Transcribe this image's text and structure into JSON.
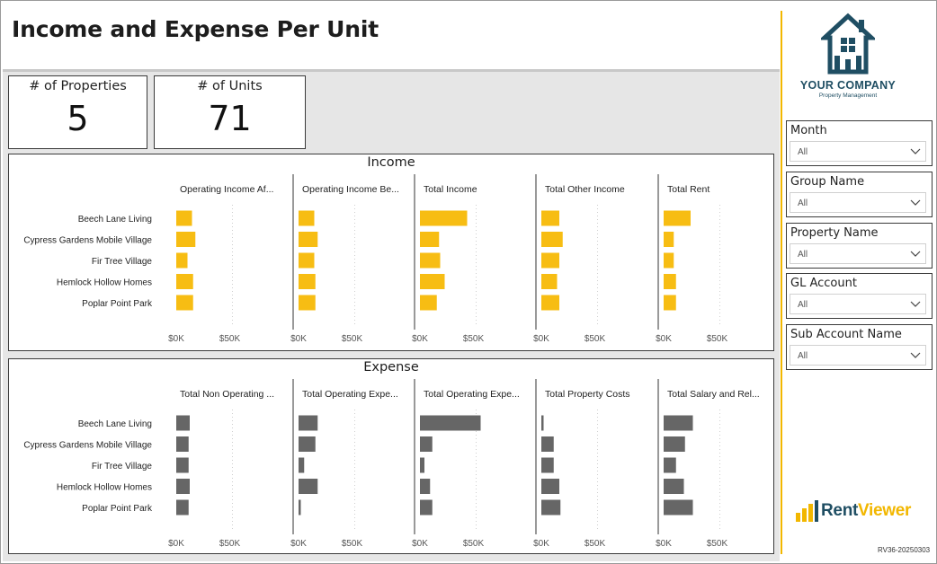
{
  "page": {
    "title": "Income and Expense Per Unit",
    "version": "RV36-20250303"
  },
  "kpis": [
    {
      "label": "# of Properties",
      "value": "5"
    },
    {
      "label": "# of Units",
      "value": "71"
    }
  ],
  "colors": {
    "accent": "#f2b700",
    "income_bar": "#f7bd13",
    "expense_bar": "#666666",
    "brand": "#1f4e63"
  },
  "properties": [
    "Beech Lane Living",
    "Cypress Gardens Mobile Village",
    "Fir Tree Village",
    "Hemlock Hollow Homes",
    "Poplar Point Park"
  ],
  "axis": {
    "ticks": [
      "$0K",
      "$50K"
    ],
    "max": 80
  },
  "income": {
    "title": "Income",
    "charts": [
      {
        "title": "Operating Income Af...",
        "values": [
          14,
          17,
          10,
          15,
          15
        ]
      },
      {
        "title": "Operating Income Be...",
        "values": [
          14,
          17,
          14,
          15,
          15
        ]
      },
      {
        "title": "Total Income",
        "values": [
          42,
          17,
          18,
          22,
          15
        ]
      },
      {
        "title": "Total Other Income",
        "values": [
          16,
          19,
          16,
          14,
          16
        ]
      },
      {
        "title": "Total Rent",
        "values": [
          24,
          9,
          9,
          11,
          11
        ]
      }
    ]
  },
  "expense": {
    "title": "Expense",
    "charts": [
      {
        "title": "Total Non Operating ...",
        "values": [
          12,
          11,
          11,
          12,
          11
        ]
      },
      {
        "title": "Total Operating Expe...",
        "values": [
          17,
          15,
          5,
          17,
          2
        ]
      },
      {
        "title": "Total Operating Expe...",
        "values": [
          54,
          11,
          4,
          9,
          11
        ]
      },
      {
        "title": "Total Property Costs",
        "values": [
          2,
          11,
          11,
          16,
          17
        ]
      },
      {
        "title": "Total Salary and Rel...",
        "values": [
          26,
          19,
          11,
          18,
          26
        ]
      }
    ]
  },
  "logo": {
    "company": "YOUR COMPANY",
    "tagline": "Property Management",
    "icon": "house-icon"
  },
  "brand_logo": {
    "part1": "Rent",
    "part2": "Viewer",
    "icon": "bar-chart-icon"
  },
  "slicers": [
    {
      "title": "Month",
      "value": "All"
    },
    {
      "title": "Group Name",
      "value": "All"
    },
    {
      "title": "Property Name",
      "value": "All"
    },
    {
      "title": "GL Account",
      "value": "All"
    },
    {
      "title": "Sub Account Name",
      "value": "All"
    }
  ]
}
